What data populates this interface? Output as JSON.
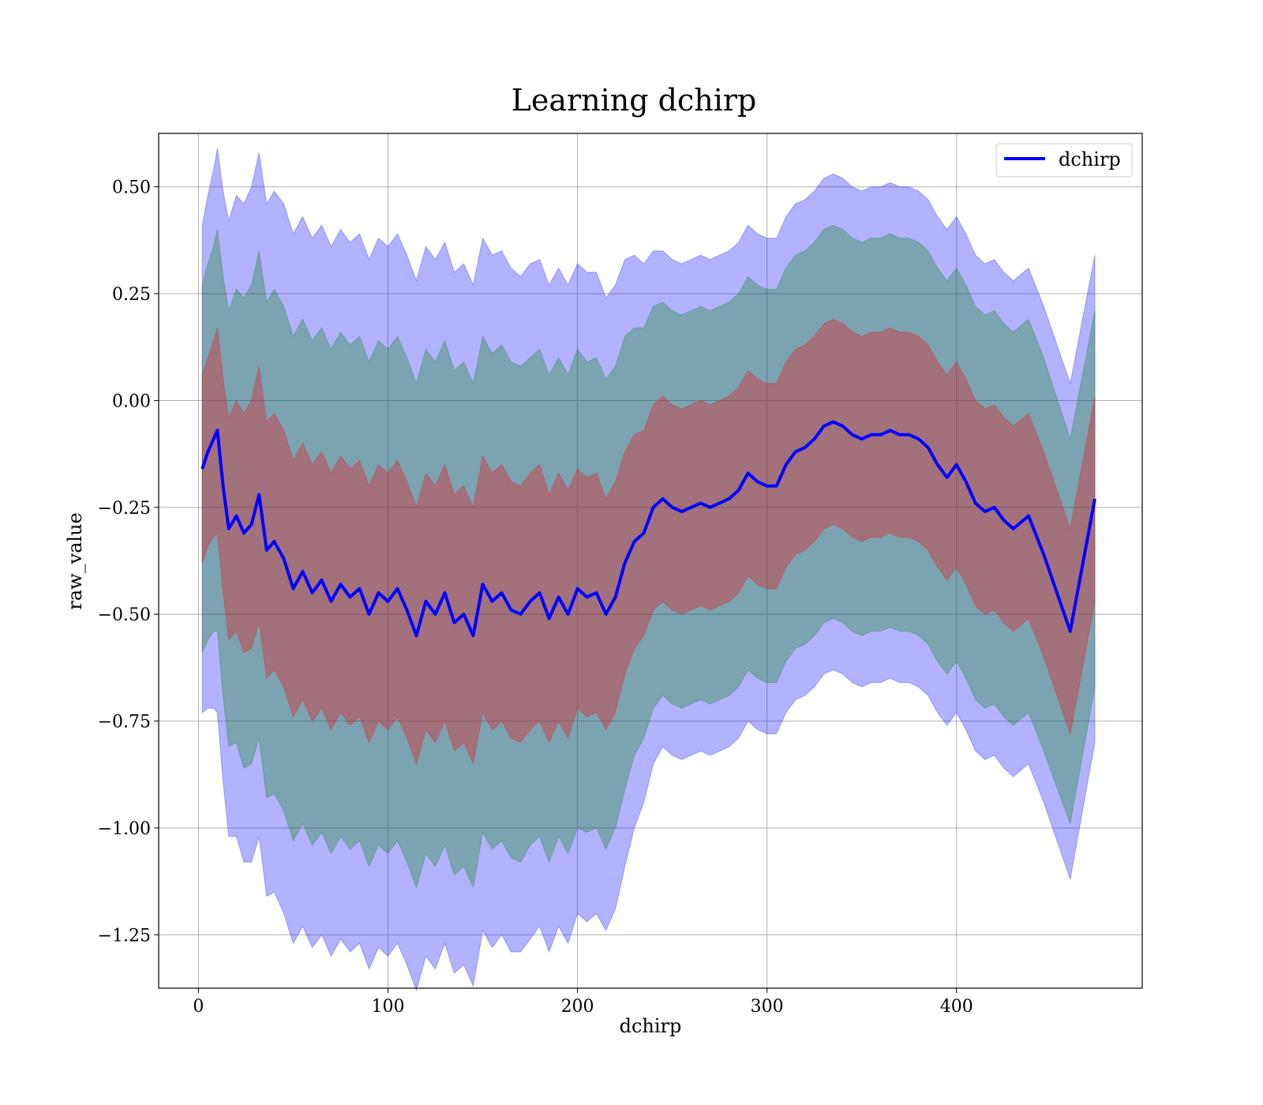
{
  "chart_data": {
    "type": "line",
    "title": "Learning dchirp",
    "xlabel": "dchirp",
    "ylabel": "raw_value",
    "xlim": [
      -21,
      498
    ],
    "ylim": [
      -1.375,
      0.625
    ],
    "xticks": [
      0,
      100,
      200,
      300,
      400
    ],
    "xtick_labels": [
      "0",
      "100",
      "200",
      "300",
      "400"
    ],
    "yticks": [
      0.5,
      0.25,
      0.0,
      -0.25,
      -0.5,
      -0.75,
      -1.0,
      -1.25
    ],
    "ytick_labels": [
      "0.50",
      "0.25",
      "0.00",
      "−0.25",
      "−0.50",
      "−0.75",
      "−1.00",
      "−1.25"
    ],
    "grid": true,
    "legend": {
      "position": "upper-right",
      "entries": [
        "dchirp"
      ]
    },
    "colors": {
      "line": "#0000ff",
      "band_outer": "#0000ff",
      "band_middle": "#008000",
      "band_inner": "#ff0000"
    },
    "series": [
      {
        "name": "dchirp",
        "x": [
          2,
          5,
          8,
          10,
          13,
          16,
          20,
          24,
          28,
          32,
          36,
          40,
          45,
          50,
          55,
          60,
          65,
          70,
          75,
          80,
          85,
          90,
          95,
          100,
          105,
          110,
          115,
          120,
          125,
          130,
          135,
          140,
          145,
          150,
          155,
          160,
          165,
          170,
          175,
          180,
          185,
          190,
          195,
          200,
          205,
          210,
          215,
          220,
          225,
          230,
          235,
          240,
          245,
          250,
          255,
          260,
          265,
          270,
          275,
          280,
          285,
          290,
          295,
          300,
          305,
          310,
          315,
          320,
          325,
          330,
          335,
          340,
          345,
          350,
          355,
          360,
          365,
          370,
          375,
          380,
          385,
          390,
          395,
          400,
          405,
          410,
          415,
          420,
          425,
          430,
          438,
          446,
          460,
          473
        ],
        "y": [
          -0.16,
          -0.12,
          -0.09,
          -0.07,
          -0.2,
          -0.3,
          -0.27,
          -0.31,
          -0.29,
          -0.22,
          -0.35,
          -0.33,
          -0.37,
          -0.44,
          -0.4,
          -0.45,
          -0.42,
          -0.47,
          -0.43,
          -0.46,
          -0.44,
          -0.5,
          -0.45,
          -0.47,
          -0.44,
          -0.49,
          -0.55,
          -0.47,
          -0.5,
          -0.45,
          -0.52,
          -0.5,
          -0.55,
          -0.43,
          -0.47,
          -0.45,
          -0.49,
          -0.5,
          -0.47,
          -0.45,
          -0.51,
          -0.46,
          -0.5,
          -0.44,
          -0.46,
          -0.45,
          -0.5,
          -0.46,
          -0.38,
          -0.33,
          -0.31,
          -0.25,
          -0.23,
          -0.25,
          -0.26,
          -0.25,
          -0.24,
          -0.25,
          -0.24,
          -0.23,
          -0.21,
          -0.17,
          -0.19,
          -0.2,
          -0.2,
          -0.15,
          -0.12,
          -0.11,
          -0.09,
          -0.06,
          -0.05,
          -0.06,
          -0.08,
          -0.09,
          -0.08,
          -0.08,
          -0.07,
          -0.08,
          -0.08,
          -0.09,
          -0.11,
          -0.15,
          -0.18,
          -0.15,
          -0.19,
          -0.24,
          -0.26,
          -0.25,
          -0.28,
          -0.3,
          -0.27,
          -0.36,
          -0.54,
          -0.23
        ],
        "band_inner_halfwidth": [
          0.22,
          0.22,
          0.23,
          0.24,
          0.25,
          0.26,
          0.27,
          0.28,
          0.29,
          0.3,
          0.3,
          0.3,
          0.3,
          0.3,
          0.3,
          0.3,
          0.3,
          0.3,
          0.3,
          0.3,
          0.3,
          0.3,
          0.3,
          0.3,
          0.3,
          0.3,
          0.3,
          0.3,
          0.3,
          0.3,
          0.3,
          0.3,
          0.3,
          0.3,
          0.3,
          0.3,
          0.3,
          0.3,
          0.3,
          0.3,
          0.29,
          0.29,
          0.29,
          0.28,
          0.28,
          0.28,
          0.27,
          0.27,
          0.26,
          0.25,
          0.24,
          0.24,
          0.24,
          0.24,
          0.24,
          0.24,
          0.24,
          0.24,
          0.24,
          0.24,
          0.24,
          0.24,
          0.24,
          0.24,
          0.24,
          0.24,
          0.24,
          0.24,
          0.24,
          0.24,
          0.24,
          0.24,
          0.24,
          0.24,
          0.24,
          0.24,
          0.24,
          0.24,
          0.24,
          0.24,
          0.24,
          0.24,
          0.24,
          0.24,
          0.24,
          0.24,
          0.24,
          0.24,
          0.24,
          0.24,
          0.24,
          0.24,
          0.24,
          0.24
        ],
        "band_middle_halfwidth": [
          0.43,
          0.44,
          0.45,
          0.47,
          0.49,
          0.51,
          0.53,
          0.55,
          0.56,
          0.57,
          0.58,
          0.59,
          0.59,
          0.59,
          0.59,
          0.59,
          0.59,
          0.59,
          0.59,
          0.59,
          0.59,
          0.59,
          0.59,
          0.59,
          0.59,
          0.59,
          0.59,
          0.59,
          0.59,
          0.59,
          0.59,
          0.59,
          0.59,
          0.58,
          0.58,
          0.58,
          0.58,
          0.58,
          0.57,
          0.57,
          0.57,
          0.56,
          0.56,
          0.56,
          0.55,
          0.55,
          0.55,
          0.54,
          0.53,
          0.5,
          0.48,
          0.47,
          0.46,
          0.46,
          0.46,
          0.46,
          0.46,
          0.46,
          0.46,
          0.46,
          0.46,
          0.46,
          0.46,
          0.46,
          0.46,
          0.46,
          0.46,
          0.46,
          0.46,
          0.46,
          0.46,
          0.46,
          0.46,
          0.46,
          0.46,
          0.46,
          0.46,
          0.46,
          0.46,
          0.46,
          0.46,
          0.46,
          0.46,
          0.46,
          0.46,
          0.46,
          0.46,
          0.46,
          0.46,
          0.46,
          0.46,
          0.46,
          0.45,
          0.44
        ],
        "band_outer_halfwidth": [
          0.57,
          0.6,
          0.63,
          0.66,
          0.69,
          0.72,
          0.75,
          0.77,
          0.79,
          0.8,
          0.81,
          0.82,
          0.83,
          0.83,
          0.83,
          0.83,
          0.83,
          0.83,
          0.83,
          0.83,
          0.83,
          0.83,
          0.83,
          0.83,
          0.83,
          0.83,
          0.83,
          0.83,
          0.83,
          0.82,
          0.82,
          0.82,
          0.82,
          0.81,
          0.81,
          0.8,
          0.8,
          0.79,
          0.79,
          0.78,
          0.78,
          0.77,
          0.77,
          0.76,
          0.76,
          0.75,
          0.74,
          0.73,
          0.71,
          0.67,
          0.63,
          0.6,
          0.58,
          0.58,
          0.58,
          0.58,
          0.58,
          0.58,
          0.58,
          0.58,
          0.58,
          0.58,
          0.58,
          0.58,
          0.58,
          0.58,
          0.58,
          0.58,
          0.58,
          0.58,
          0.58,
          0.58,
          0.58,
          0.58,
          0.58,
          0.58,
          0.58,
          0.58,
          0.58,
          0.58,
          0.58,
          0.58,
          0.58,
          0.58,
          0.58,
          0.58,
          0.58,
          0.58,
          0.58,
          0.58,
          0.58,
          0.58,
          0.58,
          0.57
        ]
      }
    ]
  }
}
